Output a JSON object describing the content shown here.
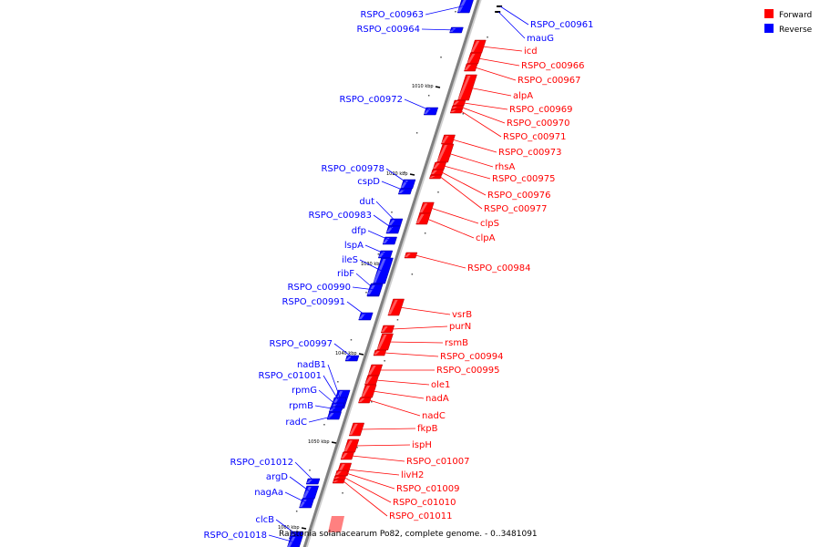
{
  "caption": "Ralstonia solanacearum Po82, complete genome. - 0..3481091",
  "legend": [
    {
      "label": "Forward",
      "color": "#ff0000"
    },
    {
      "label": "Reverse",
      "color": "#0000ff"
    }
  ],
  "colors": {
    "forward": "#ff0000",
    "reverse": "#0000ff",
    "backbone": "#808080"
  },
  "ticks": [
    "1010 kbp",
    "1020 kbp",
    "1030 kbp",
    "1040 kbp",
    "1050 kbp",
    "1060 kbp"
  ],
  "reverse_genes": [
    "RSPO_c00963",
    "RSPO_c00964",
    "RSPO_c00972",
    "RSPO_c00978",
    "cspD",
    "dut",
    "RSPO_c00983",
    "dfp",
    "lspA",
    "ileS",
    "ribF",
    "RSPO_c00990",
    "RSPO_c00991",
    "RSPO_c00997",
    "nadB1",
    "RSPO_c01001",
    "rpmG",
    "rpmB",
    "radC",
    "RSPO_c01012",
    "argD",
    "nagAa",
    "clcB",
    "RSPO_c01018"
  ],
  "top_right_reverse": [
    "RSPO_c00961",
    "mauG"
  ],
  "forward_genes": [
    "icd",
    "RSPO_c00966",
    "RSPO_c00967",
    "alpA",
    "RSPO_c00969",
    "RSPO_c00970",
    "RSPO_c00971",
    "RSPO_c00973",
    "rhsA",
    "RSPO_c00975",
    "RSPO_c00976",
    "RSPO_c00977",
    "clpS",
    "clpA",
    "RSPO_c00984",
    "vsrB",
    "purN",
    "rsmB",
    "RSPO_c00994",
    "RSPO_c00995",
    "ole1",
    "nadA",
    "nadC",
    "fkpB",
    "ispH",
    "RSPO_c01007",
    "livH2",
    "RSPO_c01009",
    "RSPO_c01010",
    "RSPO_c01011"
  ]
}
